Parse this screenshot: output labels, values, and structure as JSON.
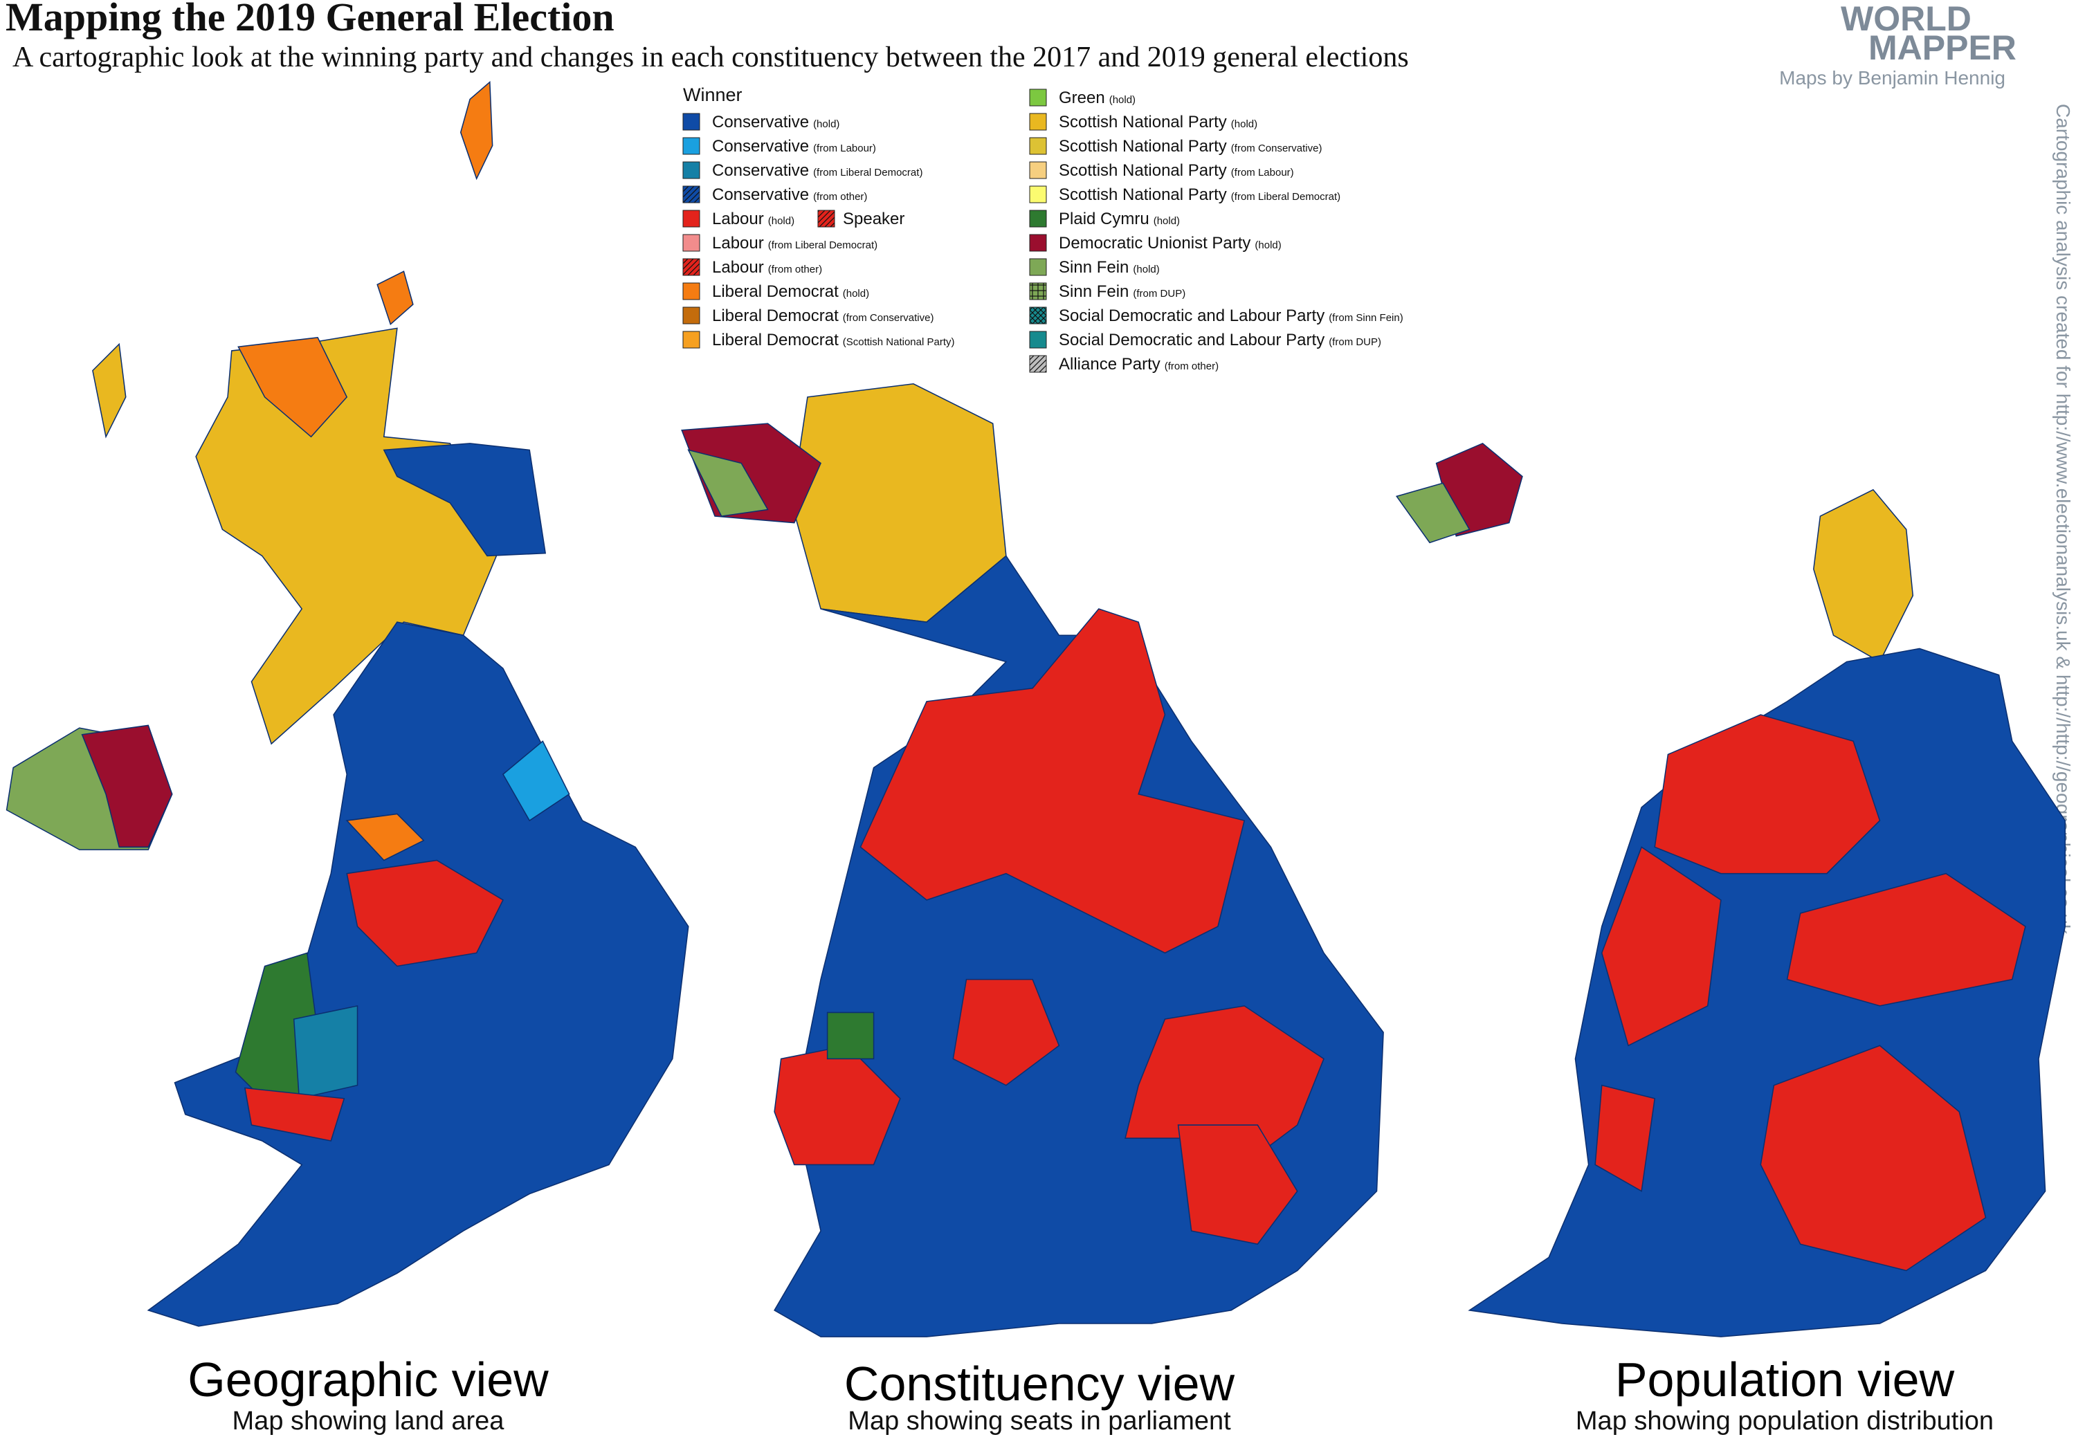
{
  "header": {
    "title": "Mapping the 2019 General Election",
    "subtitle": "A cartographic look at the winning party and changes in each constituency between the 2017 and 2019 general elections",
    "logo_top": "WORLD",
    "logo_bottom": "MAPPER",
    "credit": "Maps by Benjamin Hennig",
    "side_note": "Cartographic analysis created for http://www.electionanalysis.uk & http://http://geographical.co.uk"
  },
  "legend": {
    "title": "Winner",
    "speaker": {
      "name": "Speaker",
      "color": "#e3231c",
      "pattern": "hatch"
    },
    "columns": [
      [
        {
          "name": "Conservative",
          "qualifier": "(hold)",
          "color": "#0f4ba6"
        },
        {
          "name": "Conservative",
          "qualifier": "(from Labour)",
          "color": "#1aa0e0"
        },
        {
          "name": "Conservative",
          "qualifier": "(from Liberal Democrat)",
          "color": "#1580a6"
        },
        {
          "name": "Conservative",
          "qualifier": "(from other)",
          "color": "#0f4ba6",
          "pattern": "hatch"
        },
        {
          "name": "Labour",
          "qualifier": "(hold)",
          "color": "#e3231c"
        },
        {
          "name": "Labour",
          "qualifier": "(from Liberal Democrat)",
          "color": "#f28c8c"
        },
        {
          "name": "Labour",
          "qualifier": "(from other)",
          "color": "#e3231c",
          "pattern": "hatch"
        },
        {
          "name": "Liberal Democrat",
          "qualifier": "(hold)",
          "color": "#f57c12"
        },
        {
          "name": "Liberal Democrat",
          "qualifier": "(from Conservative)",
          "color": "#c46c0c"
        },
        {
          "name": "Liberal Democrat",
          "qualifier": "(Scottish National Party)",
          "color": "#f6a020"
        }
      ],
      [
        {
          "name": "Green",
          "qualifier": "(hold)",
          "color": "#7cc840"
        },
        {
          "name": "Scottish National Party",
          "qualifier": "(hold)",
          "color": "#e9b820"
        },
        {
          "name": "Scottish National Party",
          "qualifier": "(from Conservative)",
          "color": "#ddc234"
        },
        {
          "name": "Scottish National Party",
          "qualifier": "(from Labour)",
          "color": "#f6cf80"
        },
        {
          "name": "Scottish National Party",
          "qualifier": "(from Liberal Democrat)",
          "color": "#fbfb70"
        },
        {
          "name": "Plaid Cymru",
          "qualifier": "(hold)",
          "color": "#2e7a30"
        },
        {
          "name": "Democratic Unionist Party",
          "qualifier": "(hold)",
          "color": "#9a0e2e"
        },
        {
          "name": "Sinn Fein",
          "qualifier": "(hold)",
          "color": "#7ea856"
        },
        {
          "name": "Sinn Fein",
          "qualifier": "(from DUP)",
          "color": "#7ea856",
          "pattern": "grid"
        },
        {
          "name": "Social Democratic and Labour Party",
          "qualifier": "(from Sinn Fein)",
          "color": "#168a8e",
          "pattern": "crosshatch"
        },
        {
          "name": "Social Democratic and Labour Party",
          "qualifier": "(from DUP)",
          "color": "#168a8e"
        },
        {
          "name": "Alliance Party",
          "qualifier": "(from other)",
          "color": "#bdbdbd",
          "pattern": "hatch"
        }
      ]
    ]
  },
  "views": [
    {
      "title": "Geographic view",
      "subtitle": "Map showing land area"
    },
    {
      "title": "Constituency view",
      "subtitle": "Map showing seats in parliament"
    },
    {
      "title": "Population view",
      "subtitle": "Map showing population distribution"
    }
  ]
}
